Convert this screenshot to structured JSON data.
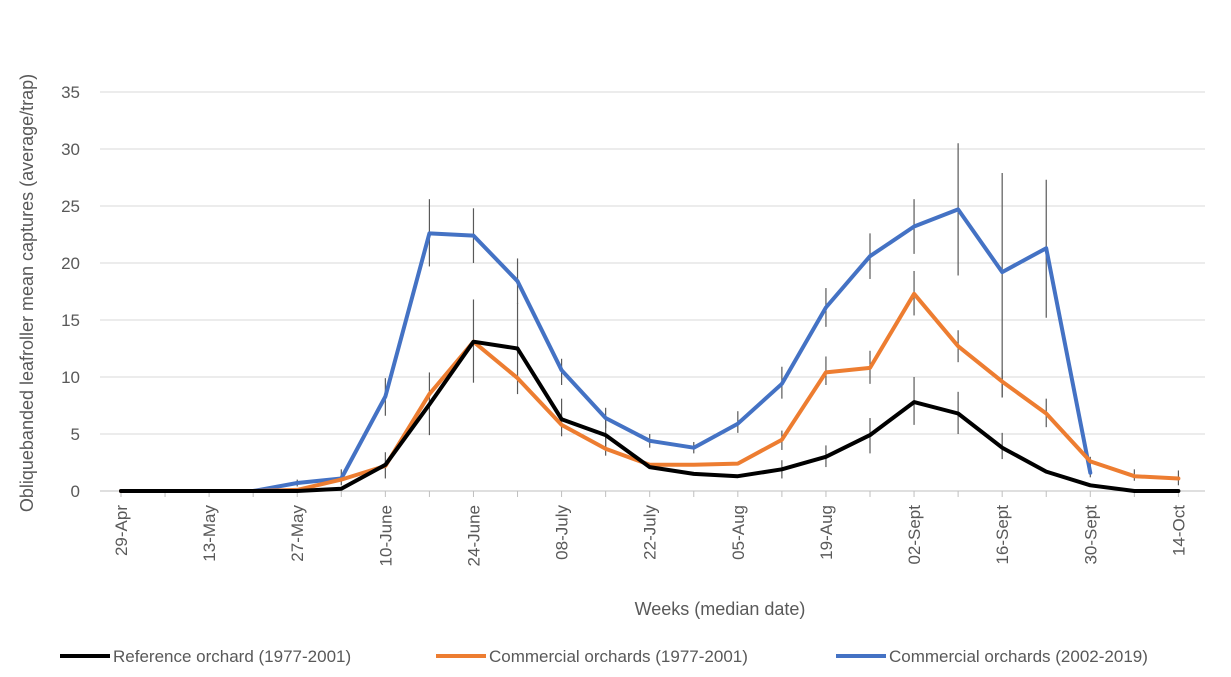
{
  "chart_data": {
    "type": "line",
    "title": "",
    "xlabel": "Weeks (median date)",
    "ylabel": "Obliquebanded leafroller mean captures (average/trap)",
    "ylim": [
      0,
      35
    ],
    "yticks": [
      0,
      5,
      10,
      15,
      20,
      25,
      30,
      35
    ],
    "grid": true,
    "legend_position": "bottom",
    "categories": [
      "29-Apr",
      "06-May",
      "13-May",
      "20-May",
      "27-May",
      "03-June",
      "10-June",
      "17-June",
      "24-June",
      "01-July",
      "08-July",
      "15-July",
      "22-July",
      "29-July",
      "05-Aug",
      "12-Aug",
      "19-Aug",
      "26-Aug",
      "02-Sept",
      "09-Sept",
      "16-Sept",
      "23-Sept",
      "30-Sept",
      "07-Oct",
      "14-Oct"
    ],
    "tick_labels": [
      "29-Apr",
      "",
      "13-May",
      "",
      "27-May",
      "",
      "10-June",
      "",
      "24-June",
      "",
      "08-July",
      "",
      "22-July",
      "",
      "05-Aug",
      "",
      "19-Aug",
      "",
      "02-Sept",
      "",
      "16-Sept",
      "",
      "30-Sept",
      "",
      "14-Oct"
    ],
    "series": [
      {
        "name": "Reference orchard (1977-2001)",
        "color": "#000000",
        "values": [
          0,
          0,
          0,
          0,
          0,
          0.2,
          2.3,
          7.6,
          13.1,
          12.5,
          6.3,
          4.9,
          2.1,
          1.5,
          1.3,
          1.9,
          3.0,
          4.9,
          7.8,
          6.8,
          3.8,
          1.7,
          0.5,
          0.0,
          0.0
        ],
        "error_low": [
          null,
          null,
          null,
          null,
          null,
          null,
          1.1,
          4.9,
          9.5,
          8.5,
          4.8,
          3.7,
          null,
          null,
          null,
          1.1,
          2.1,
          3.3,
          5.8,
          5.0,
          2.8,
          null,
          null,
          null,
          null
        ],
        "error_high": [
          null,
          null,
          null,
          null,
          null,
          null,
          3.4,
          10.4,
          16.8,
          16.5,
          8.1,
          6.2,
          null,
          null,
          null,
          2.7,
          4.0,
          6.4,
          10.0,
          8.7,
          5.1,
          null,
          null,
          null,
          null
        ]
      },
      {
        "name": "Commercial orchards (1977-2001)",
        "color": "#ED7D31",
        "values": [
          0,
          0,
          0,
          0,
          0.1,
          1.0,
          2.2,
          8.5,
          13.1,
          9.9,
          5.8,
          3.7,
          2.3,
          2.3,
          2.4,
          4.5,
          10.4,
          10.8,
          17.3,
          12.7,
          9.6,
          6.8,
          2.6,
          1.3,
          1.1
        ],
        "error_low": [
          null,
          null,
          null,
          null,
          null,
          0.5,
          null,
          null,
          null,
          null,
          null,
          3.1,
          null,
          null,
          null,
          3.6,
          9.3,
          9.4,
          15.4,
          11.3,
          8.2,
          5.6,
          2.0,
          0.9,
          0.5
        ],
        "error_high": [
          null,
          null,
          null,
          null,
          null,
          1.9,
          null,
          null,
          null,
          null,
          null,
          4.7,
          null,
          null,
          null,
          5.3,
          11.8,
          12.3,
          19.3,
          14.1,
          10.6,
          8.1,
          3.0,
          1.9,
          1.8
        ]
      },
      {
        "name": "Commercial orchards (2002-2019)",
        "color": "#4472C4",
        "values": [
          0,
          0,
          0,
          0,
          0.7,
          1.1,
          8.3,
          22.6,
          22.4,
          18.4,
          10.6,
          6.4,
          4.4,
          3.8,
          5.9,
          9.4,
          16.1,
          20.6,
          23.2,
          24.7,
          19.2,
          21.3,
          1.6,
          null,
          null
        ],
        "error_low": [
          null,
          null,
          null,
          null,
          0.4,
          0.8,
          6.6,
          19.7,
          20.0,
          16.4,
          9.3,
          5.5,
          3.8,
          3.3,
          5.1,
          8.1,
          14.4,
          18.6,
          20.8,
          18.9,
          8.2,
          15.2,
          1.2,
          null,
          null
        ],
        "error_high": [
          null,
          null,
          null,
          null,
          1.0,
          1.4,
          9.9,
          25.6,
          24.8,
          20.4,
          11.6,
          7.3,
          5.0,
          4.3,
          7.0,
          10.9,
          17.8,
          22.6,
          25.6,
          30.5,
          27.9,
          27.3,
          2.0,
          null,
          null
        ]
      }
    ]
  }
}
